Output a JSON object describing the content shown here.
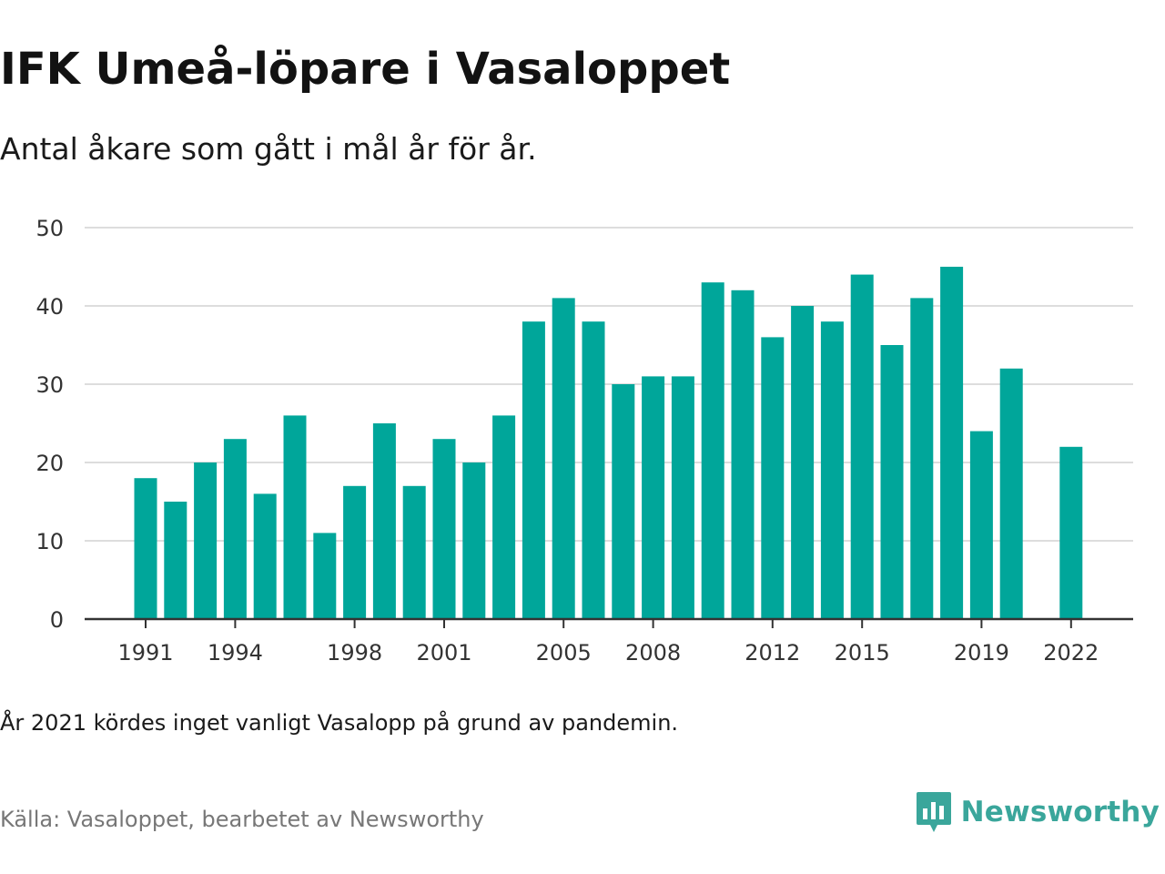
{
  "title": "IFK Umeå-löpare i Vasaloppet",
  "subtitle": "Antal åkare som gått i mål år för år.",
  "note": "År 2021 kördes inget vanligt Vasalopp på grund av pandemin.",
  "source": "Källa: Vasaloppet, bearbetet av Newsworthy",
  "brand": {
    "name": "Newsworthy",
    "icon": "newsworthy-logo-icon"
  },
  "colors": {
    "bar": "#00a69a",
    "grid": "#dddddd",
    "axis": "#333333",
    "brand": "#3aa69b"
  },
  "chart_data": {
    "type": "bar",
    "title": "",
    "xlabel": "",
    "ylabel": "",
    "ylim": [
      0,
      50
    ],
    "yticks": [
      0,
      10,
      20,
      30,
      40,
      50
    ],
    "grid": true,
    "xticks": [
      1991,
      1994,
      1998,
      2001,
      2005,
      2008,
      2012,
      2015,
      2019,
      2022
    ],
    "categories": [
      1991,
      1992,
      1993,
      1994,
      1995,
      1996,
      1997,
      1998,
      1999,
      2000,
      2001,
      2002,
      2003,
      2004,
      2005,
      2006,
      2007,
      2008,
      2009,
      2010,
      2011,
      2012,
      2013,
      2014,
      2015,
      2016,
      2017,
      2018,
      2019,
      2020,
      2021,
      2022
    ],
    "values": [
      18,
      15,
      20,
      23,
      16,
      26,
      11,
      17,
      25,
      17,
      23,
      20,
      26,
      38,
      41,
      38,
      30,
      31,
      31,
      43,
      42,
      36,
      40,
      38,
      44,
      35,
      41,
      45,
      24,
      32,
      null,
      22
    ]
  }
}
